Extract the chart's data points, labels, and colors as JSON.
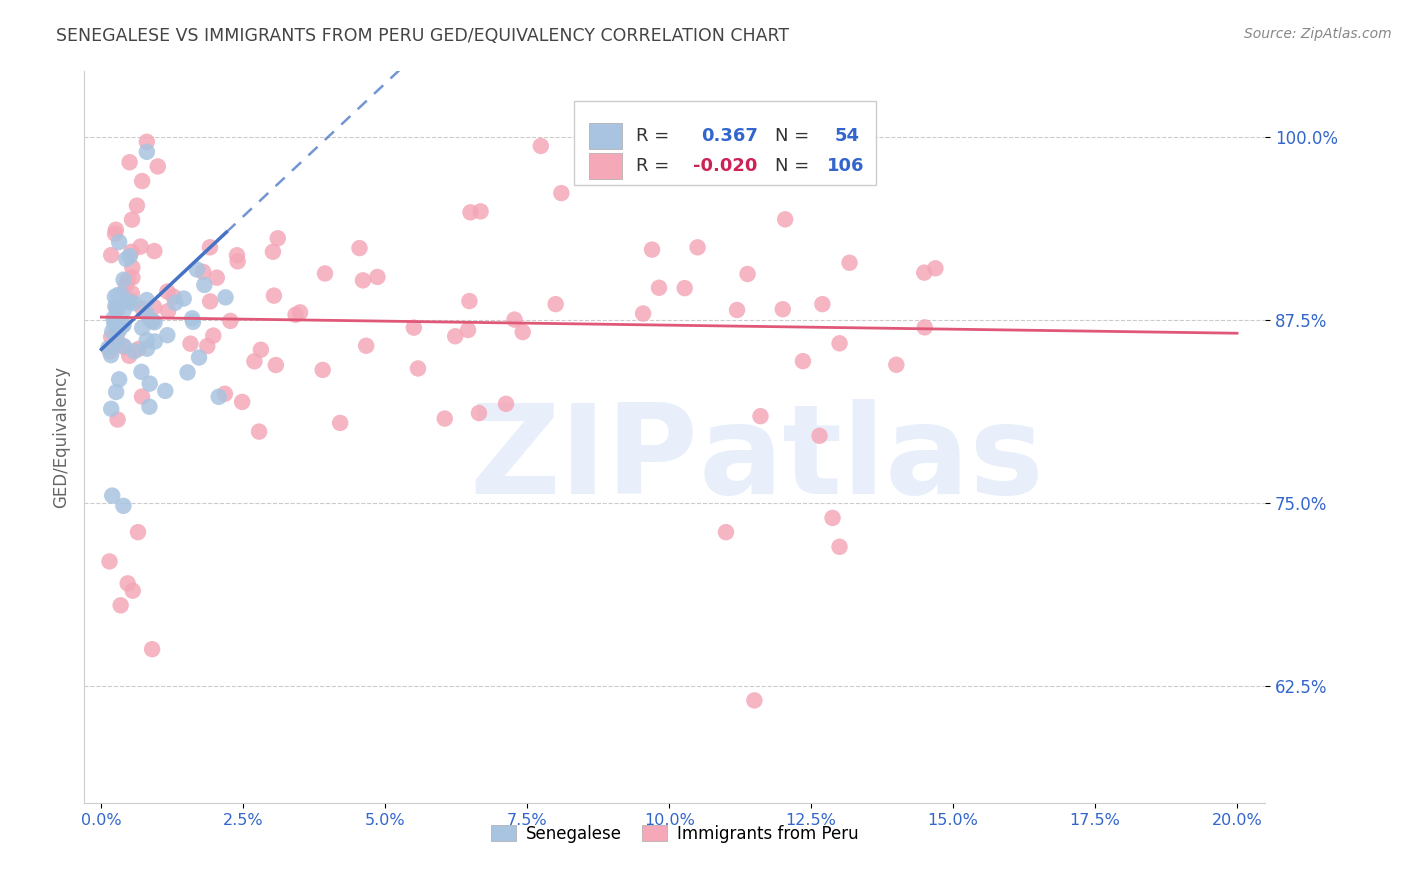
{
  "title": "SENEGALESE VS IMMIGRANTS FROM PERU GED/EQUIVALENCY CORRELATION CHART",
  "source": "Source: ZipAtlas.com",
  "ylabel": "GED/Equivalency",
  "ytick_labels": [
    "100.0%",
    "87.5%",
    "75.0%",
    "62.5%"
  ],
  "ytick_values": [
    1.0,
    0.875,
    0.75,
    0.625
  ],
  "xtick_labels": [
    "0.0%",
    "2.5%",
    "5.0%",
    "7.5%",
    "10.0%",
    "12.5%",
    "15.0%",
    "17.5%",
    "20.0%"
  ],
  "xtick_values": [
    0.0,
    0.025,
    0.05,
    0.075,
    0.1,
    0.125,
    0.15,
    0.175,
    0.2
  ],
  "xlim": [
    -0.003,
    0.205
  ],
  "ylim": [
    0.545,
    1.045
  ],
  "legend_labels": [
    "Senegalese",
    "Immigrants from Peru"
  ],
  "legend_R1": "0.367",
  "legend_N1": "54",
  "legend_R2": "-0.020",
  "legend_N2": "106",
  "senegalese_color": "#a8c4e0",
  "peru_color": "#f4a8b8",
  "senegalese_line_color": "#4472c4",
  "peru_line_color": "#e05878",
  "background_color": "#ffffff",
  "grid_color": "#cccccc",
  "tick_color": "#3366cc",
  "title_color": "#444444",
  "ylabel_color": "#666666",
  "source_color": "#888888"
}
